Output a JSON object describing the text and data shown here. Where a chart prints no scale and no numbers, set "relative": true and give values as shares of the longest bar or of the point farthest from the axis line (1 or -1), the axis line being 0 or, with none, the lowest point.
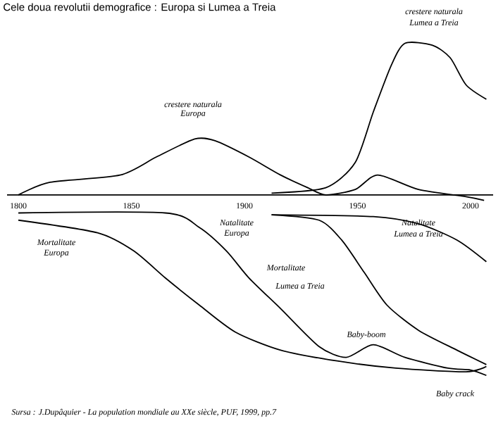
{
  "chart_data": {
    "type": "line",
    "relative": true,
    "title": "Cele  doua revolutii demografice : Europa si Lumea a Treia",
    "xlim": [
      1795,
      2010
    ],
    "xticks": [
      1800,
      1850,
      1900,
      1950,
      2000
    ],
    "series": [
      {
        "color": "#000000",
        "x": [
          1800,
          1814,
          1845,
          1861,
          1878,
          1887,
          1902,
          1916,
          1928,
          1936,
          1949,
          1959,
          1977,
          1998,
          2006
        ],
        "values": [
          0,
          0.07,
          0.11,
          0.21,
          0.31,
          0.3,
          0.21,
          0.11,
          0.04,
          0,
          0.03,
          0.11,
          0.03,
          -0.01,
          -0.03
        ]
      },
      {
        "color": "#000000",
        "x": [
          1912,
          1936,
          1949,
          1957,
          1965,
          1971,
          1983,
          1991,
          1998,
          2007
        ],
        "values": [
          0.01,
          0.04,
          0.18,
          0.46,
          0.72,
          0.84,
          0.83,
          0.76,
          0.61,
          0.53
        ]
      },
      {
        "color": "#000000",
        "x": [
          1800,
          1865,
          1880,
          1892,
          1902,
          1916,
          1933,
          1945,
          1957,
          1971,
          1990,
          2000,
          2007
        ],
        "values": [
          -0.1,
          -0.1,
          -0.18,
          -0.31,
          -0.46,
          -0.63,
          -0.84,
          -0.9,
          -0.83,
          -0.9,
          -0.96,
          -0.97,
          -1
        ]
      },
      {
        "color": "#000000",
        "x": [
          1800,
          1835,
          1851,
          1865,
          1880,
          1896,
          1916,
          1941,
          1967,
          1998,
          2007
        ],
        "values": [
          -0.14,
          -0.21,
          -0.31,
          -0.46,
          -0.61,
          -0.76,
          -0.86,
          -0.92,
          -0.96,
          -0.98,
          -0.95
        ]
      },
      {
        "color": "#000000",
        "x": [
          1912,
          1957,
          1977,
          1994,
          2007
        ],
        "values": [
          -0.11,
          -0.12,
          -0.16,
          -0.25,
          -0.37
        ]
      },
      {
        "color": "#000000",
        "x": [
          1912,
          1933,
          1943,
          1953,
          1963,
          1977,
          1994,
          2007
        ],
        "values": [
          -0.11,
          -0.14,
          -0.25,
          -0.43,
          -0.61,
          -0.75,
          -0.86,
          -0.94
        ]
      }
    ],
    "annotations": [
      "crestere naturala",
      "Europa",
      "crestere naturala",
      "Lumea a Treia",
      "Natalitate",
      "Europa",
      "Mortalitate",
      "Europa",
      "Mortalitate",
      "Lumea a Treia",
      "Natalitate",
      "Lumea a Treia",
      "Baby-boom",
      "Baby crack",
      "Sursa : J.Dupâquier - La population mondiale au XXe siècle, PUF, 1999, pp.7"
    ]
  }
}
